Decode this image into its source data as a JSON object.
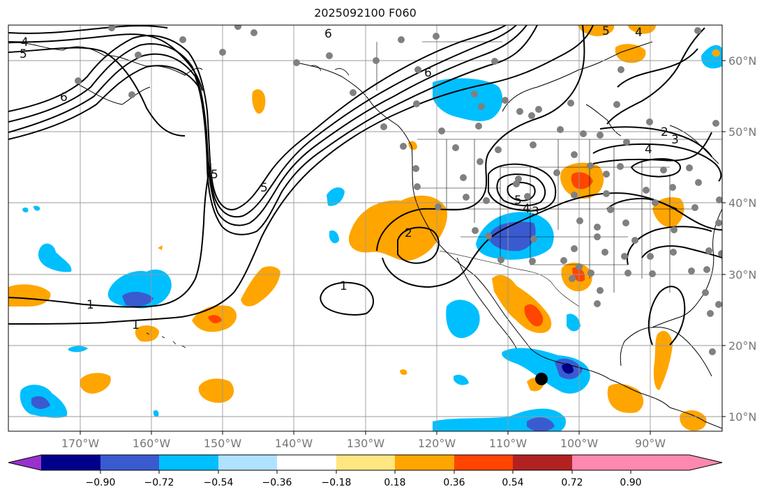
{
  "title": "2025092100 F060",
  "lat_labels": [
    "60°N",
    "50°N",
    "40°N",
    "30°N",
    "20°N",
    "10°N"
  ],
  "lon_labels": [
    "170°W",
    "160°W",
    "150°W",
    "140°W",
    "130°W",
    "120°W",
    "110°W",
    "100°W",
    "90°W"
  ],
  "colorbar": {
    "ticks": [
      "−0.90",
      "−0.72",
      "−0.54",
      "−0.36",
      "−0.18",
      "0.18",
      "0.36",
      "0.54",
      "0.72",
      "0.90"
    ],
    "colors": [
      "#9932cc",
      "#00008b",
      "#3a5bd0",
      "#00bfff",
      "#aee2ff",
      "#ffffff",
      "#ffe680",
      "#ffa500",
      "#ff4500",
      "#b22222",
      "#ff88b0"
    ]
  },
  "contour_labels": [
    "4",
    "5",
    "6",
    "6",
    "6",
    "5",
    "4",
    "5",
    "5",
    "4",
    "3",
    "2",
    "2",
    "3",
    "1",
    "1",
    "1",
    "4",
    "5"
  ],
  "colors": {
    "gridline": "#999999",
    "contour": "#000000",
    "station": "#808080",
    "marker": "#000000"
  }
}
